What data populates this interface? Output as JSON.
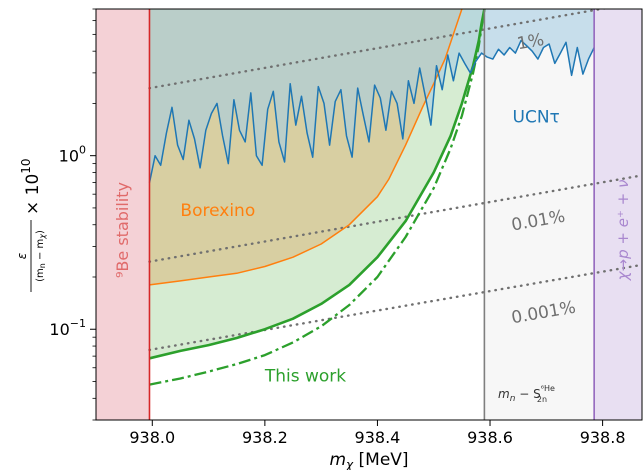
{
  "chart_data": {
    "type": "line",
    "xlabel": "m",
    "xlabel_sub": "χ",
    "xlabel_unit": " [MeV]",
    "ylabel_num": "ε",
    "ylabel_den": "(m",
    "ylabel_den_sub_n": "n",
    "ylabel_den_mid": " − m",
    "ylabel_den_sub_chi": "χ",
    "ylabel_den_end": ")",
    "ylabel_factor": "× 10",
    "ylabel_exp": "10",
    "x_scale": "linear",
    "y_scale": "log",
    "xlim": [
      937.9,
      938.87
    ],
    "ylim": [
      0.03,
      7.0
    ],
    "x_ticks": [
      938.0,
      938.2,
      938.4,
      938.6,
      938.8
    ],
    "x_tick_labels": [
      "938.0",
      "938.2",
      "938.4",
      "938.6",
      "938.8"
    ],
    "y_ticks": [
      {
        "value": 1.0,
        "base": "10",
        "exp": "0"
      },
      {
        "value": 0.1,
        "base": "10",
        "exp": "−1"
      }
    ],
    "regions": [
      {
        "name": "be9_stability",
        "label": "⁹Be stability",
        "x_range": [
          937.9,
          937.995
        ],
        "color": "#f4d1d6",
        "edge_color": "#d62728"
      },
      {
        "name": "he6_bound",
        "label_main": "m",
        "label_sub_n": "n",
        "label_minus": " − S",
        "label_sup": "⁶He",
        "label_sub": "2n",
        "x_range": [
          938.59,
          938.785
        ],
        "color": "#f7f7f7",
        "edge_color": "#7f7f7f"
      },
      {
        "name": "chi_decay",
        "label": "χ→p + e⁺ + ν",
        "x_range": [
          938.785,
          938.87
        ],
        "color": "#e8dff2",
        "edge_color": "#9467bd"
      }
    ],
    "series": [
      {
        "name": "Borexino",
        "color": "#ff7f0e",
        "fill": "#d8cc9c",
        "style": "solid",
        "x": [
          937.995,
          938.05,
          938.1,
          938.15,
          938.2,
          938.25,
          938.3,
          938.35,
          938.4,
          938.42,
          938.45,
          938.48,
          938.5,
          938.52,
          938.55
        ],
        "y": [
          0.18,
          0.19,
          0.2,
          0.21,
          0.23,
          0.26,
          0.31,
          0.4,
          0.58,
          0.73,
          1.15,
          1.9,
          2.6,
          3.6,
          7.0
        ]
      },
      {
        "name": "This work",
        "color": "#2ca02c",
        "fill": "#d6ecd2",
        "style": "solid",
        "x": [
          937.995,
          938.05,
          938.1,
          938.15,
          938.2,
          938.25,
          938.3,
          938.35,
          938.4,
          938.45,
          938.5,
          938.53,
          938.55,
          938.57,
          938.58,
          938.585,
          938.59
        ],
        "y": [
          0.068,
          0.075,
          0.081,
          0.089,
          0.1,
          0.115,
          0.14,
          0.18,
          0.26,
          0.42,
          0.8,
          1.3,
          2.0,
          3.3,
          4.6,
          5.8,
          7.0
        ]
      },
      {
        "name": "This work (dash-dot)",
        "color": "#2ca02c",
        "style": "dashdot",
        "x": [
          937.995,
          938.05,
          938.1,
          938.15,
          938.2,
          938.25,
          938.3,
          938.35,
          938.4,
          938.45,
          938.5,
          938.53,
          938.55,
          938.57,
          938.58,
          938.59
        ],
        "y": [
          0.048,
          0.052,
          0.057,
          0.063,
          0.071,
          0.084,
          0.104,
          0.138,
          0.2,
          0.34,
          0.65,
          1.1,
          1.7,
          3.0,
          4.3,
          7.0
        ]
      },
      {
        "name": "UCNτ",
        "color": "#1f77b4",
        "fill": "#a6cde3",
        "style": "solid",
        "x": [
          937.995,
          938.005,
          938.015,
          938.025,
          938.035,
          938.045,
          938.055,
          938.065,
          938.075,
          938.085,
          938.095,
          938.105,
          938.115,
          938.125,
          938.135,
          938.145,
          938.155,
          938.165,
          938.175,
          938.185,
          938.195,
          938.205,
          938.215,
          938.225,
          938.235,
          938.245,
          938.255,
          938.265,
          938.275,
          938.285,
          938.295,
          938.305,
          938.315,
          938.325,
          938.335,
          938.345,
          938.355,
          938.365,
          938.375,
          938.385,
          938.395,
          938.405,
          938.415,
          938.425,
          938.435,
          938.445,
          938.455,
          938.465,
          938.475,
          938.485,
          938.495,
          938.505,
          938.515,
          938.525,
          938.535,
          938.545,
          938.555,
          938.565,
          938.575,
          938.585,
          938.595,
          938.605,
          938.615,
          938.625,
          938.635,
          938.645,
          938.655,
          938.665,
          938.675,
          938.685,
          938.695,
          938.705,
          938.715,
          938.725,
          938.735,
          938.745,
          938.755,
          938.765,
          938.775,
          938.785
        ],
        "y": [
          0.7,
          1.0,
          0.88,
          1.35,
          1.9,
          1.15,
          0.95,
          1.6,
          1.25,
          0.85,
          1.4,
          1.75,
          2.0,
          1.3,
          0.9,
          2.1,
          1.4,
          1.2,
          2.3,
          1.0,
          0.88,
          1.85,
          2.35,
          1.2,
          0.92,
          2.6,
          1.5,
          2.2,
          1.35,
          0.98,
          2.5,
          2.0,
          1.15,
          2.05,
          2.4,
          1.3,
          0.98,
          2.45,
          1.7,
          1.2,
          2.55,
          2.15,
          1.4,
          2.35,
          2.0,
          1.25,
          2.7,
          2.0,
          3.2,
          2.2,
          1.5,
          3.3,
          2.4,
          3.8,
          2.7,
          3.9,
          3.4,
          3.0,
          3.5,
          3.9,
          3.7,
          3.6,
          4.1,
          3.8,
          4.2,
          3.9,
          4.6,
          4.3,
          4.0,
          3.6,
          4.2,
          4.4,
          3.4,
          3.9,
          4.5,
          2.9,
          4.2,
          2.95,
          3.6,
          4.2
        ]
      }
    ],
    "dotted_lines": [
      {
        "label": "1%",
        "color": "#707070",
        "x": [
          937.995,
          938.87
        ],
        "y": [
          2.45,
          7.7
        ]
      },
      {
        "label": "0.01%",
        "color": "#707070",
        "x": [
          937.995,
          938.87
        ],
        "y": [
          0.245,
          0.77
        ]
      },
      {
        "label": "0.001%",
        "color": "#707070",
        "x": [
          937.995,
          938.87
        ],
        "y": [
          0.076,
          0.235
        ]
      }
    ],
    "annotations": [
      {
        "text": "Borexino",
        "color": "#ff7f0e",
        "x": 938.05,
        "y": 0.45
      },
      {
        "text": "This work",
        "color": "#2ca02c",
        "x": 938.2,
        "y": 0.05
      },
      {
        "text": "UCNτ",
        "color": "#1f77b4",
        "x": 938.64,
        "y": 1.55
      },
      {
        "text": "1%",
        "color": "#707070",
        "x": 938.65,
        "y": 4.1
      },
      {
        "text": "0.01%",
        "color": "#707070",
        "x": 938.64,
        "y": 0.37
      },
      {
        "text": "0.001%",
        "color": "#707070",
        "x": 938.64,
        "y": 0.108
      }
    ],
    "grid": false
  }
}
